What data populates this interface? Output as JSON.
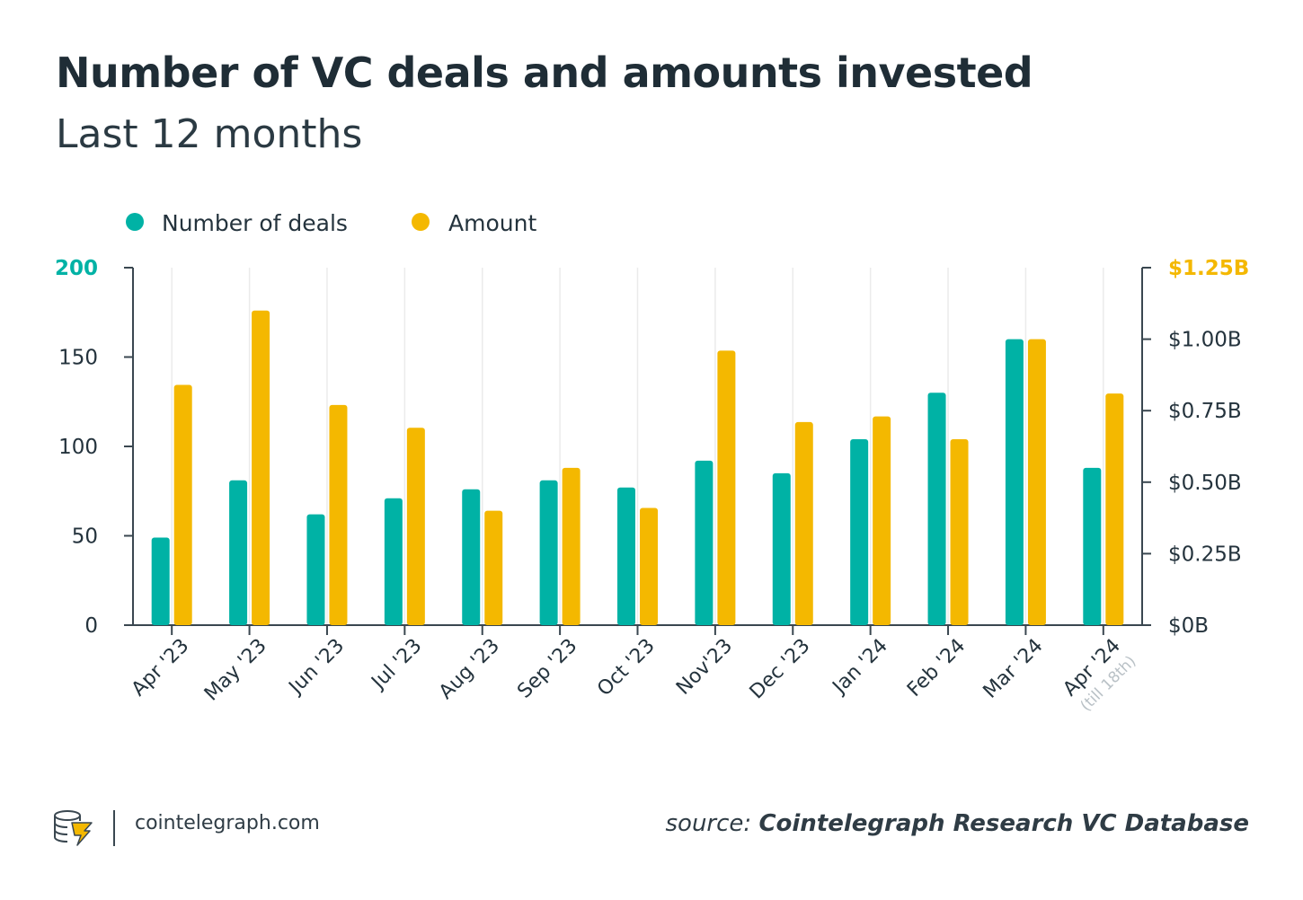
{
  "header": {
    "title": "Number of VC deals and amounts invested",
    "subtitle": "Last 12 months"
  },
  "chart_data": {
    "type": "bar",
    "categories": [
      "Apr '23",
      "May '23",
      "Jun '23",
      "Jul '23",
      "Aug '23",
      "Sep '23",
      "Oct '23",
      "Nov'23",
      "Dec '23",
      "Jan '24",
      "Feb '24",
      "Mar '24",
      "Apr '24"
    ],
    "category_notes": [
      "",
      "",
      "",
      "",
      "",
      "",
      "",
      "",
      "",
      "",
      "",
      "",
      "(till 18th)"
    ],
    "series": [
      {
        "name": "Number of deals",
        "axis": "left",
        "color": "#00b2a5",
        "values": [
          49,
          81,
          62,
          71,
          76,
          81,
          77,
          92,
          85,
          104,
          130,
          160,
          88
        ]
      },
      {
        "name": "Amount",
        "axis": "right",
        "color": "#f4b800",
        "values": [
          0.84,
          1.1,
          0.77,
          0.69,
          0.4,
          0.55,
          0.41,
          0.96,
          0.71,
          0.73,
          0.65,
          1.0,
          0.81
        ]
      }
    ],
    "y_left": {
      "ylim": [
        0,
        200
      ],
      "ticks": [
        0,
        50,
        100,
        150,
        200
      ],
      "tick_labels": [
        "0",
        "50",
        "100",
        "150",
        "200"
      ],
      "highlight_tick": "200",
      "highlight_color": "#00b2a5"
    },
    "y_right": {
      "ylim": [
        0,
        1.25
      ],
      "ticks": [
        0,
        0.25,
        0.5,
        0.75,
        1.0,
        1.25
      ],
      "tick_labels": [
        "$0B",
        "$0.25B",
        "$0.50B",
        "$0.75B",
        "$1.00B",
        "$1.25B"
      ],
      "highlight_tick": "$1.25B",
      "highlight_color": "#f4b800"
    },
    "legend_position": "top-left",
    "grid": "vertical"
  },
  "footer": {
    "site": "cointelegraph.com",
    "source_prefix": "source:",
    "source_name": "Cointelegraph Research VC Database"
  },
  "colors": {
    "teal": "#00b2a5",
    "gold": "#f4b800",
    "text": "#24333d",
    "axis": "#3a4750",
    "note": "#b9c1c6"
  }
}
